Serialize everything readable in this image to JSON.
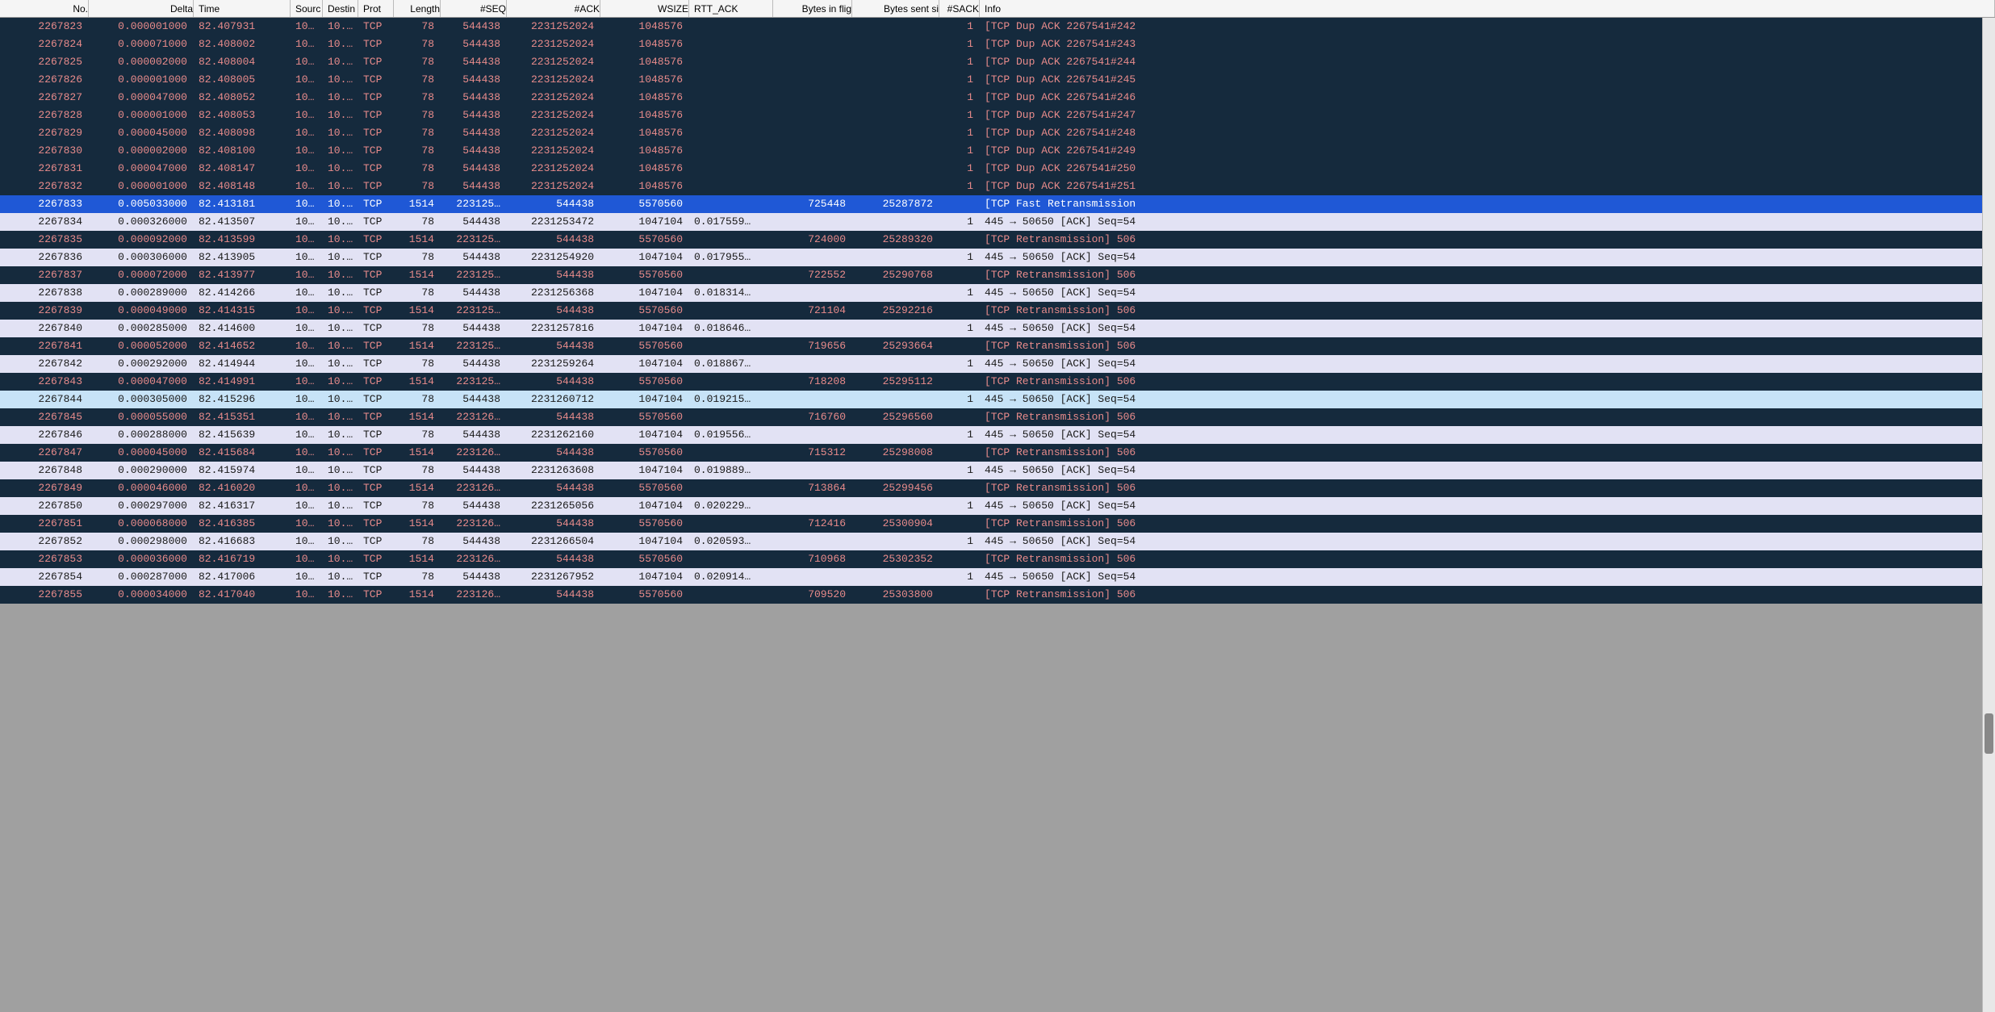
{
  "colors": {
    "dupack_bg": "#152a3d",
    "dupack_fg": "#e88b8b",
    "retrans_bg": "#152a3d",
    "retrans_fg": "#e88b8b",
    "ack_light_bg": "#e2e2f4",
    "ack_light_fg": "#1a1a1a",
    "ack_light2_bg": "#c7e3f7",
    "ack_light2_fg": "#1a1a1a",
    "selected_bg": "#1f58d6",
    "selected_fg": "#ffffff",
    "header_bg": "#f5f5f5"
  },
  "columns": [
    {
      "key": "no",
      "label": "No."
    },
    {
      "key": "delta",
      "label": "Delta"
    },
    {
      "key": "time",
      "label": "Time"
    },
    {
      "key": "src",
      "label": "Sourc"
    },
    {
      "key": "dst",
      "label": "Destin"
    },
    {
      "key": "prot",
      "label": "Prot"
    },
    {
      "key": "len",
      "label": "Length"
    },
    {
      "key": "seq",
      "label": "#SEQ"
    },
    {
      "key": "ack",
      "label": "#ACK"
    },
    {
      "key": "wsize",
      "label": "WSIZE"
    },
    {
      "key": "rtt",
      "label": "RTT_ACK"
    },
    {
      "key": "flig",
      "label": "Bytes in flig"
    },
    {
      "key": "sent",
      "label": "Bytes sent si"
    },
    {
      "key": "sack",
      "label": "#SACK"
    },
    {
      "key": "info",
      "label": "Info"
    }
  ],
  "rows": [
    {
      "style": "dupack",
      "no": "2267823",
      "delta": "0.000001000",
      "time": "82.407931",
      "src": "10…",
      "dst": "10.…",
      "prot": "TCP",
      "len": "78",
      "seq": "544438",
      "ack": "2231252024",
      "wsize": "1048576",
      "rtt": "",
      "flig": "",
      "sent": "",
      "sack": "1",
      "info": "[TCP Dup ACK 2267541#242"
    },
    {
      "style": "dupack",
      "no": "2267824",
      "delta": "0.000071000",
      "time": "82.408002",
      "src": "10…",
      "dst": "10.…",
      "prot": "TCP",
      "len": "78",
      "seq": "544438",
      "ack": "2231252024",
      "wsize": "1048576",
      "rtt": "",
      "flig": "",
      "sent": "",
      "sack": "1",
      "info": "[TCP Dup ACK 2267541#243"
    },
    {
      "style": "dupack",
      "no": "2267825",
      "delta": "0.000002000",
      "time": "82.408004",
      "src": "10…",
      "dst": "10.…",
      "prot": "TCP",
      "len": "78",
      "seq": "544438",
      "ack": "2231252024",
      "wsize": "1048576",
      "rtt": "",
      "flig": "",
      "sent": "",
      "sack": "1",
      "info": "[TCP Dup ACK 2267541#244"
    },
    {
      "style": "dupack",
      "no": "2267826",
      "delta": "0.000001000",
      "time": "82.408005",
      "src": "10…",
      "dst": "10.…",
      "prot": "TCP",
      "len": "78",
      "seq": "544438",
      "ack": "2231252024",
      "wsize": "1048576",
      "rtt": "",
      "flig": "",
      "sent": "",
      "sack": "1",
      "info": "[TCP Dup ACK 2267541#245"
    },
    {
      "style": "dupack",
      "no": "2267827",
      "delta": "0.000047000",
      "time": "82.408052",
      "src": "10…",
      "dst": "10.…",
      "prot": "TCP",
      "len": "78",
      "seq": "544438",
      "ack": "2231252024",
      "wsize": "1048576",
      "rtt": "",
      "flig": "",
      "sent": "",
      "sack": "1",
      "info": "[TCP Dup ACK 2267541#246"
    },
    {
      "style": "dupack",
      "no": "2267828",
      "delta": "0.000001000",
      "time": "82.408053",
      "src": "10…",
      "dst": "10.…",
      "prot": "TCP",
      "len": "78",
      "seq": "544438",
      "ack": "2231252024",
      "wsize": "1048576",
      "rtt": "",
      "flig": "",
      "sent": "",
      "sack": "1",
      "info": "[TCP Dup ACK 2267541#247"
    },
    {
      "style": "dupack",
      "no": "2267829",
      "delta": "0.000045000",
      "time": "82.408098",
      "src": "10…",
      "dst": "10.…",
      "prot": "TCP",
      "len": "78",
      "seq": "544438",
      "ack": "2231252024",
      "wsize": "1048576",
      "rtt": "",
      "flig": "",
      "sent": "",
      "sack": "1",
      "info": "[TCP Dup ACK 2267541#248"
    },
    {
      "style": "dupack",
      "no": "2267830",
      "delta": "0.000002000",
      "time": "82.408100",
      "src": "10…",
      "dst": "10.…",
      "prot": "TCP",
      "len": "78",
      "seq": "544438",
      "ack": "2231252024",
      "wsize": "1048576",
      "rtt": "",
      "flig": "",
      "sent": "",
      "sack": "1",
      "info": "[TCP Dup ACK 2267541#249"
    },
    {
      "style": "dupack",
      "no": "2267831",
      "delta": "0.000047000",
      "time": "82.408147",
      "src": "10…",
      "dst": "10.…",
      "prot": "TCP",
      "len": "78",
      "seq": "544438",
      "ack": "2231252024",
      "wsize": "1048576",
      "rtt": "",
      "flig": "",
      "sent": "",
      "sack": "1",
      "info": "[TCP Dup ACK 2267541#250"
    },
    {
      "style": "dupack",
      "no": "2267832",
      "delta": "0.000001000",
      "time": "82.408148",
      "src": "10…",
      "dst": "10.…",
      "prot": "TCP",
      "len": "78",
      "seq": "544438",
      "ack": "2231252024",
      "wsize": "1048576",
      "rtt": "",
      "flig": "",
      "sent": "",
      "sack": "1",
      "info": "[TCP Dup ACK 2267541#251"
    },
    {
      "style": "selected",
      "no": "2267833",
      "delta": "0.005033000",
      "time": "82.413181",
      "src": "10…",
      "dst": "10.…",
      "prot": "TCP",
      "len": "1514",
      "seq": "223125…",
      "ack": "544438",
      "wsize": "5570560",
      "rtt": "",
      "flig": "725448",
      "sent": "25287872",
      "sack": "",
      "info": "[TCP Fast Retransmission"
    },
    {
      "style": "acklight",
      "no": "2267834",
      "delta": "0.000326000",
      "time": "82.413507",
      "src": "10…",
      "dst": "10.…",
      "prot": "TCP",
      "len": "78",
      "seq": "544438",
      "ack": "2231253472",
      "wsize": "1047104",
      "rtt": "0.017559…",
      "flig": "",
      "sent": "",
      "sack": "1",
      "info": "445 → 50650 [ACK] Seq=54"
    },
    {
      "style": "retrans",
      "no": "2267835",
      "delta": "0.000092000",
      "time": "82.413599",
      "src": "10…",
      "dst": "10.…",
      "prot": "TCP",
      "len": "1514",
      "seq": "223125…",
      "ack": "544438",
      "wsize": "5570560",
      "rtt": "",
      "flig": "724000",
      "sent": "25289320",
      "sack": "",
      "info": "[TCP Retransmission] 506"
    },
    {
      "style": "acklight",
      "no": "2267836",
      "delta": "0.000306000",
      "time": "82.413905",
      "src": "10…",
      "dst": "10.…",
      "prot": "TCP",
      "len": "78",
      "seq": "544438",
      "ack": "2231254920",
      "wsize": "1047104",
      "rtt": "0.017955…",
      "flig": "",
      "sent": "",
      "sack": "1",
      "info": "445 → 50650 [ACK] Seq=54"
    },
    {
      "style": "retrans",
      "no": "2267837",
      "delta": "0.000072000",
      "time": "82.413977",
      "src": "10…",
      "dst": "10.…",
      "prot": "TCP",
      "len": "1514",
      "seq": "223125…",
      "ack": "544438",
      "wsize": "5570560",
      "rtt": "",
      "flig": "722552",
      "sent": "25290768",
      "sack": "",
      "info": "[TCP Retransmission] 506"
    },
    {
      "style": "acklight",
      "no": "2267838",
      "delta": "0.000289000",
      "time": "82.414266",
      "src": "10…",
      "dst": "10.…",
      "prot": "TCP",
      "len": "78",
      "seq": "544438",
      "ack": "2231256368",
      "wsize": "1047104",
      "rtt": "0.018314…",
      "flig": "",
      "sent": "",
      "sack": "1",
      "info": "445 → 50650 [ACK] Seq=54"
    },
    {
      "style": "retrans",
      "no": "2267839",
      "delta": "0.000049000",
      "time": "82.414315",
      "src": "10…",
      "dst": "10.…",
      "prot": "TCP",
      "len": "1514",
      "seq": "223125…",
      "ack": "544438",
      "wsize": "5570560",
      "rtt": "",
      "flig": "721104",
      "sent": "25292216",
      "sack": "",
      "info": "[TCP Retransmission] 506"
    },
    {
      "style": "acklight",
      "no": "2267840",
      "delta": "0.000285000",
      "time": "82.414600",
      "src": "10…",
      "dst": "10.…",
      "prot": "TCP",
      "len": "78",
      "seq": "544438",
      "ack": "2231257816",
      "wsize": "1047104",
      "rtt": "0.018646…",
      "flig": "",
      "sent": "",
      "sack": "1",
      "info": "445 → 50650 [ACK] Seq=54"
    },
    {
      "style": "retrans",
      "no": "2267841",
      "delta": "0.000052000",
      "time": "82.414652",
      "src": "10…",
      "dst": "10.…",
      "prot": "TCP",
      "len": "1514",
      "seq": "223125…",
      "ack": "544438",
      "wsize": "5570560",
      "rtt": "",
      "flig": "719656",
      "sent": "25293664",
      "sack": "",
      "info": "[TCP Retransmission] 506"
    },
    {
      "style": "acklight",
      "no": "2267842",
      "delta": "0.000292000",
      "time": "82.414944",
      "src": "10…",
      "dst": "10.…",
      "prot": "TCP",
      "len": "78",
      "seq": "544438",
      "ack": "2231259264",
      "wsize": "1047104",
      "rtt": "0.018867…",
      "flig": "",
      "sent": "",
      "sack": "1",
      "info": "445 → 50650 [ACK] Seq=54"
    },
    {
      "style": "retrans",
      "no": "2267843",
      "delta": "0.000047000",
      "time": "82.414991",
      "src": "10…",
      "dst": "10.…",
      "prot": "TCP",
      "len": "1514",
      "seq": "223125…",
      "ack": "544438",
      "wsize": "5570560",
      "rtt": "",
      "flig": "718208",
      "sent": "25295112",
      "sack": "",
      "info": "[TCP Retransmission] 506"
    },
    {
      "style": "acklight2",
      "no": "2267844",
      "delta": "0.000305000",
      "time": "82.415296",
      "src": "10…",
      "dst": "10.…",
      "prot": "TCP",
      "len": "78",
      "seq": "544438",
      "ack": "2231260712",
      "wsize": "1047104",
      "rtt": "0.019215…",
      "flig": "",
      "sent": "",
      "sack": "1",
      "info": "445 → 50650 [ACK] Seq=54"
    },
    {
      "style": "retrans",
      "no": "2267845",
      "delta": "0.000055000",
      "time": "82.415351",
      "src": "10…",
      "dst": "10.…",
      "prot": "TCP",
      "len": "1514",
      "seq": "223126…",
      "ack": "544438",
      "wsize": "5570560",
      "rtt": "",
      "flig": "716760",
      "sent": "25296560",
      "sack": "",
      "info": "[TCP Retransmission] 506"
    },
    {
      "style": "acklight",
      "no": "2267846",
      "delta": "0.000288000",
      "time": "82.415639",
      "src": "10…",
      "dst": "10.…",
      "prot": "TCP",
      "len": "78",
      "seq": "544438",
      "ack": "2231262160",
      "wsize": "1047104",
      "rtt": "0.019556…",
      "flig": "",
      "sent": "",
      "sack": "1",
      "info": "445 → 50650 [ACK] Seq=54"
    },
    {
      "style": "retrans",
      "no": "2267847",
      "delta": "0.000045000",
      "time": "82.415684",
      "src": "10…",
      "dst": "10.…",
      "prot": "TCP",
      "len": "1514",
      "seq": "223126…",
      "ack": "544438",
      "wsize": "5570560",
      "rtt": "",
      "flig": "715312",
      "sent": "25298008",
      "sack": "",
      "info": "[TCP Retransmission] 506"
    },
    {
      "style": "acklight",
      "no": "2267848",
      "delta": "0.000290000",
      "time": "82.415974",
      "src": "10…",
      "dst": "10.…",
      "prot": "TCP",
      "len": "78",
      "seq": "544438",
      "ack": "2231263608",
      "wsize": "1047104",
      "rtt": "0.019889…",
      "flig": "",
      "sent": "",
      "sack": "1",
      "info": "445 → 50650 [ACK] Seq=54"
    },
    {
      "style": "retrans",
      "no": "2267849",
      "delta": "0.000046000",
      "time": "82.416020",
      "src": "10…",
      "dst": "10.…",
      "prot": "TCP",
      "len": "1514",
      "seq": "223126…",
      "ack": "544438",
      "wsize": "5570560",
      "rtt": "",
      "flig": "713864",
      "sent": "25299456",
      "sack": "",
      "info": "[TCP Retransmission] 506"
    },
    {
      "style": "acklight",
      "no": "2267850",
      "delta": "0.000297000",
      "time": "82.416317",
      "src": "10…",
      "dst": "10.…",
      "prot": "TCP",
      "len": "78",
      "seq": "544438",
      "ack": "2231265056",
      "wsize": "1047104",
      "rtt": "0.020229…",
      "flig": "",
      "sent": "",
      "sack": "1",
      "info": "445 → 50650 [ACK] Seq=54"
    },
    {
      "style": "retrans",
      "no": "2267851",
      "delta": "0.000068000",
      "time": "82.416385",
      "src": "10…",
      "dst": "10.…",
      "prot": "TCP",
      "len": "1514",
      "seq": "223126…",
      "ack": "544438",
      "wsize": "5570560",
      "rtt": "",
      "flig": "712416",
      "sent": "25300904",
      "sack": "",
      "info": "[TCP Retransmission] 506"
    },
    {
      "style": "acklight",
      "no": "2267852",
      "delta": "0.000298000",
      "time": "82.416683",
      "src": "10…",
      "dst": "10.…",
      "prot": "TCP",
      "len": "78",
      "seq": "544438",
      "ack": "2231266504",
      "wsize": "1047104",
      "rtt": "0.020593…",
      "flig": "",
      "sent": "",
      "sack": "1",
      "info": "445 → 50650 [ACK] Seq=54"
    },
    {
      "style": "retrans",
      "no": "2267853",
      "delta": "0.000036000",
      "time": "82.416719",
      "src": "10…",
      "dst": "10.…",
      "prot": "TCP",
      "len": "1514",
      "seq": "223126…",
      "ack": "544438",
      "wsize": "5570560",
      "rtt": "",
      "flig": "710968",
      "sent": "25302352",
      "sack": "",
      "info": "[TCP Retransmission] 506"
    },
    {
      "style": "acklight",
      "no": "2267854",
      "delta": "0.000287000",
      "time": "82.417006",
      "src": "10…",
      "dst": "10.…",
      "prot": "TCP",
      "len": "78",
      "seq": "544438",
      "ack": "2231267952",
      "wsize": "1047104",
      "rtt": "0.020914…",
      "flig": "",
      "sent": "",
      "sack": "1",
      "info": "445 → 50650 [ACK] Seq=54"
    },
    {
      "style": "retrans",
      "no": "2267855",
      "delta": "0.000034000",
      "time": "82.417040",
      "src": "10…",
      "dst": "10.…",
      "prot": "TCP",
      "len": "1514",
      "seq": "223126…",
      "ack": "544438",
      "wsize": "5570560",
      "rtt": "",
      "flig": "709520",
      "sent": "25303800",
      "sack": "",
      "info": "[TCP Retransmission] 506"
    }
  ],
  "scrollbar": {
    "thumb_top_pct": 70,
    "thumb_height_pct": 4
  }
}
